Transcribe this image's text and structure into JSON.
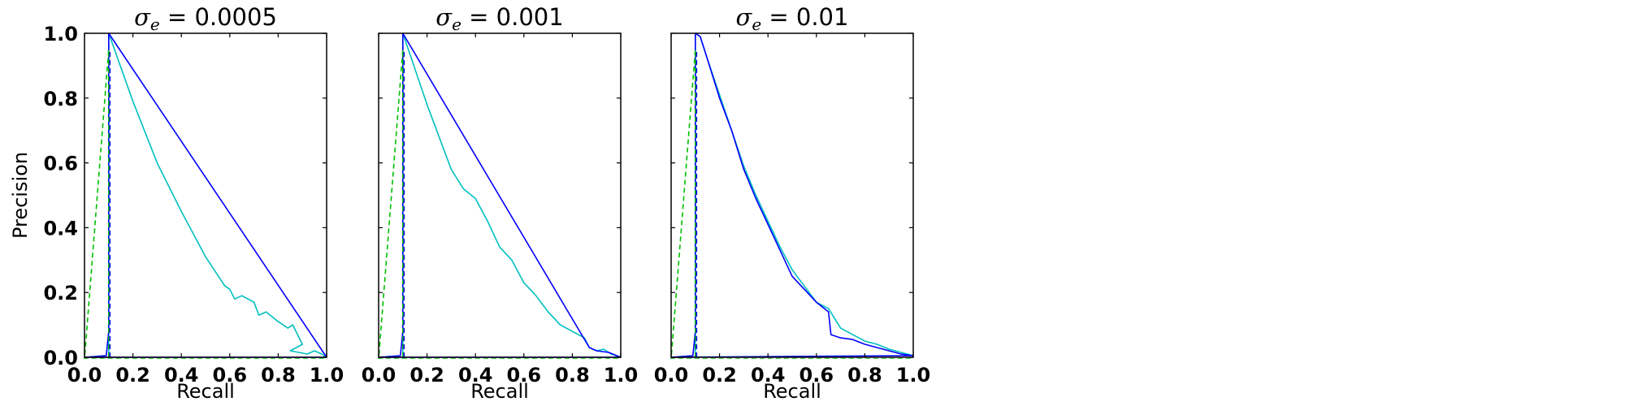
{
  "chart_data": [
    {
      "type": "line",
      "title": "σe = 0.0005",
      "title_parts": {
        "symbol": "σ",
        "subscript": "e",
        "text": " = 0.0005"
      },
      "xlabel": "Recall",
      "ylabel": "Precision",
      "xlim": [
        0.0,
        1.0
      ],
      "ylim": [
        0.0,
        1.0
      ],
      "xticks": [
        "0.0",
        "0.2",
        "0.4",
        "0.6",
        "0.8",
        "1.0"
      ],
      "yticks": [
        "0.0",
        "0.2",
        "0.4",
        "0.6",
        "0.8",
        "1.0"
      ],
      "grid": false,
      "series": [
        {
          "color": "#00bfbf",
          "style": "solid",
          "x": [
            0.1,
            0.1,
            0.2,
            0.3,
            0.4,
            0.5,
            0.58,
            0.6,
            0.62,
            0.65,
            0.7,
            0.72,
            0.75,
            0.8,
            0.82,
            0.84,
            0.86,
            0.88,
            0.9,
            0.85,
            0.92,
            0.95,
            0.98,
            1.0
          ],
          "y": [
            0.0,
            1.0,
            0.79,
            0.6,
            0.45,
            0.31,
            0.22,
            0.21,
            0.18,
            0.19,
            0.17,
            0.13,
            0.14,
            0.11,
            0.1,
            0.09,
            0.1,
            0.07,
            0.04,
            0.02,
            0.01,
            0.02,
            0.01,
            0.0
          ]
        },
        {
          "color": "#0000ff",
          "style": "solid",
          "x": [
            0.0,
            0.09,
            0.1,
            0.1,
            1.0,
            1.0,
            0.0
          ],
          "y": [
            0.0,
            0.005,
            0.08,
            1.0,
            0.0,
            0.0,
            0.0
          ]
        },
        {
          "color": "#00bf00",
          "style": "dashed",
          "x": [
            0.1,
            0.1,
            0.0,
            1.0
          ],
          "y": [
            0.0,
            0.95,
            -0.005,
            -0.005
          ]
        },
        {
          "color": "#0000ff",
          "style": "dashed",
          "x": [
            0.105,
            0.105
          ],
          "y": [
            0.0,
            0.95
          ]
        }
      ]
    },
    {
      "type": "line",
      "title": "σe = 0.001",
      "title_parts": {
        "symbol": "σ",
        "subscript": "e",
        "text": " = 0.001"
      },
      "xlabel": "Recall",
      "ylabel": "",
      "xlim": [
        0.0,
        1.0
      ],
      "ylim": [
        0.0,
        1.0
      ],
      "xticks": [
        "0.0",
        "0.2",
        "0.4",
        "0.6",
        "0.8",
        "1.0"
      ],
      "yticks": [],
      "grid": false,
      "series": [
        {
          "color": "#00bfbf",
          "style": "solid",
          "x": [
            0.1,
            0.1,
            0.2,
            0.3,
            0.35,
            0.4,
            0.45,
            0.5,
            0.55,
            0.6,
            0.65,
            0.7,
            0.75,
            0.8,
            0.85,
            0.87,
            0.9,
            0.93,
            0.96,
            1.0
          ],
          "y": [
            0.0,
            1.0,
            0.78,
            0.58,
            0.52,
            0.49,
            0.42,
            0.34,
            0.3,
            0.23,
            0.19,
            0.14,
            0.1,
            0.08,
            0.06,
            0.03,
            0.02,
            0.025,
            0.01,
            0.0
          ]
        },
        {
          "color": "#0000ff",
          "style": "solid",
          "x": [
            0.0,
            0.09,
            0.1,
            0.1,
            0.87,
            0.9,
            0.95,
            1.0,
            0.0
          ],
          "y": [
            0.0,
            0.005,
            0.08,
            1.0,
            0.03,
            0.02,
            0.015,
            0.0,
            0.0
          ]
        },
        {
          "color": "#00bf00",
          "style": "dashed",
          "x": [
            0.1,
            0.1,
            0.0,
            1.0
          ],
          "y": [
            0.0,
            0.95,
            -0.005,
            -0.005
          ]
        },
        {
          "color": "#0000ff",
          "style": "dashed",
          "x": [
            0.105,
            0.105
          ],
          "y": [
            0.0,
            0.95
          ]
        }
      ]
    },
    {
      "type": "line",
      "title": "σe = 0.01",
      "title_parts": {
        "symbol": "σ",
        "subscript": "e",
        "text": " = 0.01"
      },
      "xlabel": "Recall",
      "ylabel": "",
      "xlim": [
        0.0,
        1.0
      ],
      "ylim": [
        0.0,
        1.0
      ],
      "xticks": [
        "0.0",
        "0.2",
        "0.4",
        "0.6",
        "0.8",
        "1.0"
      ],
      "yticks": [],
      "grid": false,
      "series": [
        {
          "color": "#00bfbf",
          "style": "solid",
          "x": [
            0.1,
            0.1,
            0.12,
            0.15,
            0.2,
            0.25,
            0.3,
            0.35,
            0.4,
            0.45,
            0.5,
            0.55,
            0.6,
            0.65,
            0.7,
            0.75,
            0.8,
            0.85,
            0.9,
            0.95,
            1.0
          ],
          "y": [
            0.0,
            1.0,
            0.99,
            0.92,
            0.81,
            0.7,
            0.59,
            0.5,
            0.42,
            0.34,
            0.27,
            0.22,
            0.17,
            0.15,
            0.09,
            0.07,
            0.05,
            0.04,
            0.025,
            0.015,
            0.005
          ]
        },
        {
          "color": "#0000ff",
          "style": "solid",
          "x": [
            0.0,
            0.09,
            0.1,
            0.1,
            0.12,
            0.15,
            0.2,
            0.25,
            0.3,
            0.35,
            0.4,
            0.45,
            0.5,
            0.55,
            0.6,
            0.65,
            0.66,
            0.7,
            0.75,
            0.8,
            0.85,
            0.9,
            0.95,
            1.0,
            0.0
          ],
          "y": [
            0.0,
            0.005,
            0.08,
            1.0,
            0.99,
            0.92,
            0.8,
            0.7,
            0.58,
            0.49,
            0.41,
            0.33,
            0.25,
            0.21,
            0.17,
            0.14,
            0.07,
            0.06,
            0.055,
            0.04,
            0.03,
            0.02,
            0.01,
            0.005,
            0.0
          ]
        },
        {
          "color": "#00bf00",
          "style": "dashed",
          "x": [
            0.1,
            0.1,
            0.0,
            1.0
          ],
          "y": [
            0.0,
            0.95,
            -0.005,
            -0.005
          ]
        },
        {
          "color": "#0000ff",
          "style": "dashed",
          "x": [
            0.105,
            0.105
          ],
          "y": [
            0.0,
            0.95
          ]
        }
      ]
    }
  ]
}
